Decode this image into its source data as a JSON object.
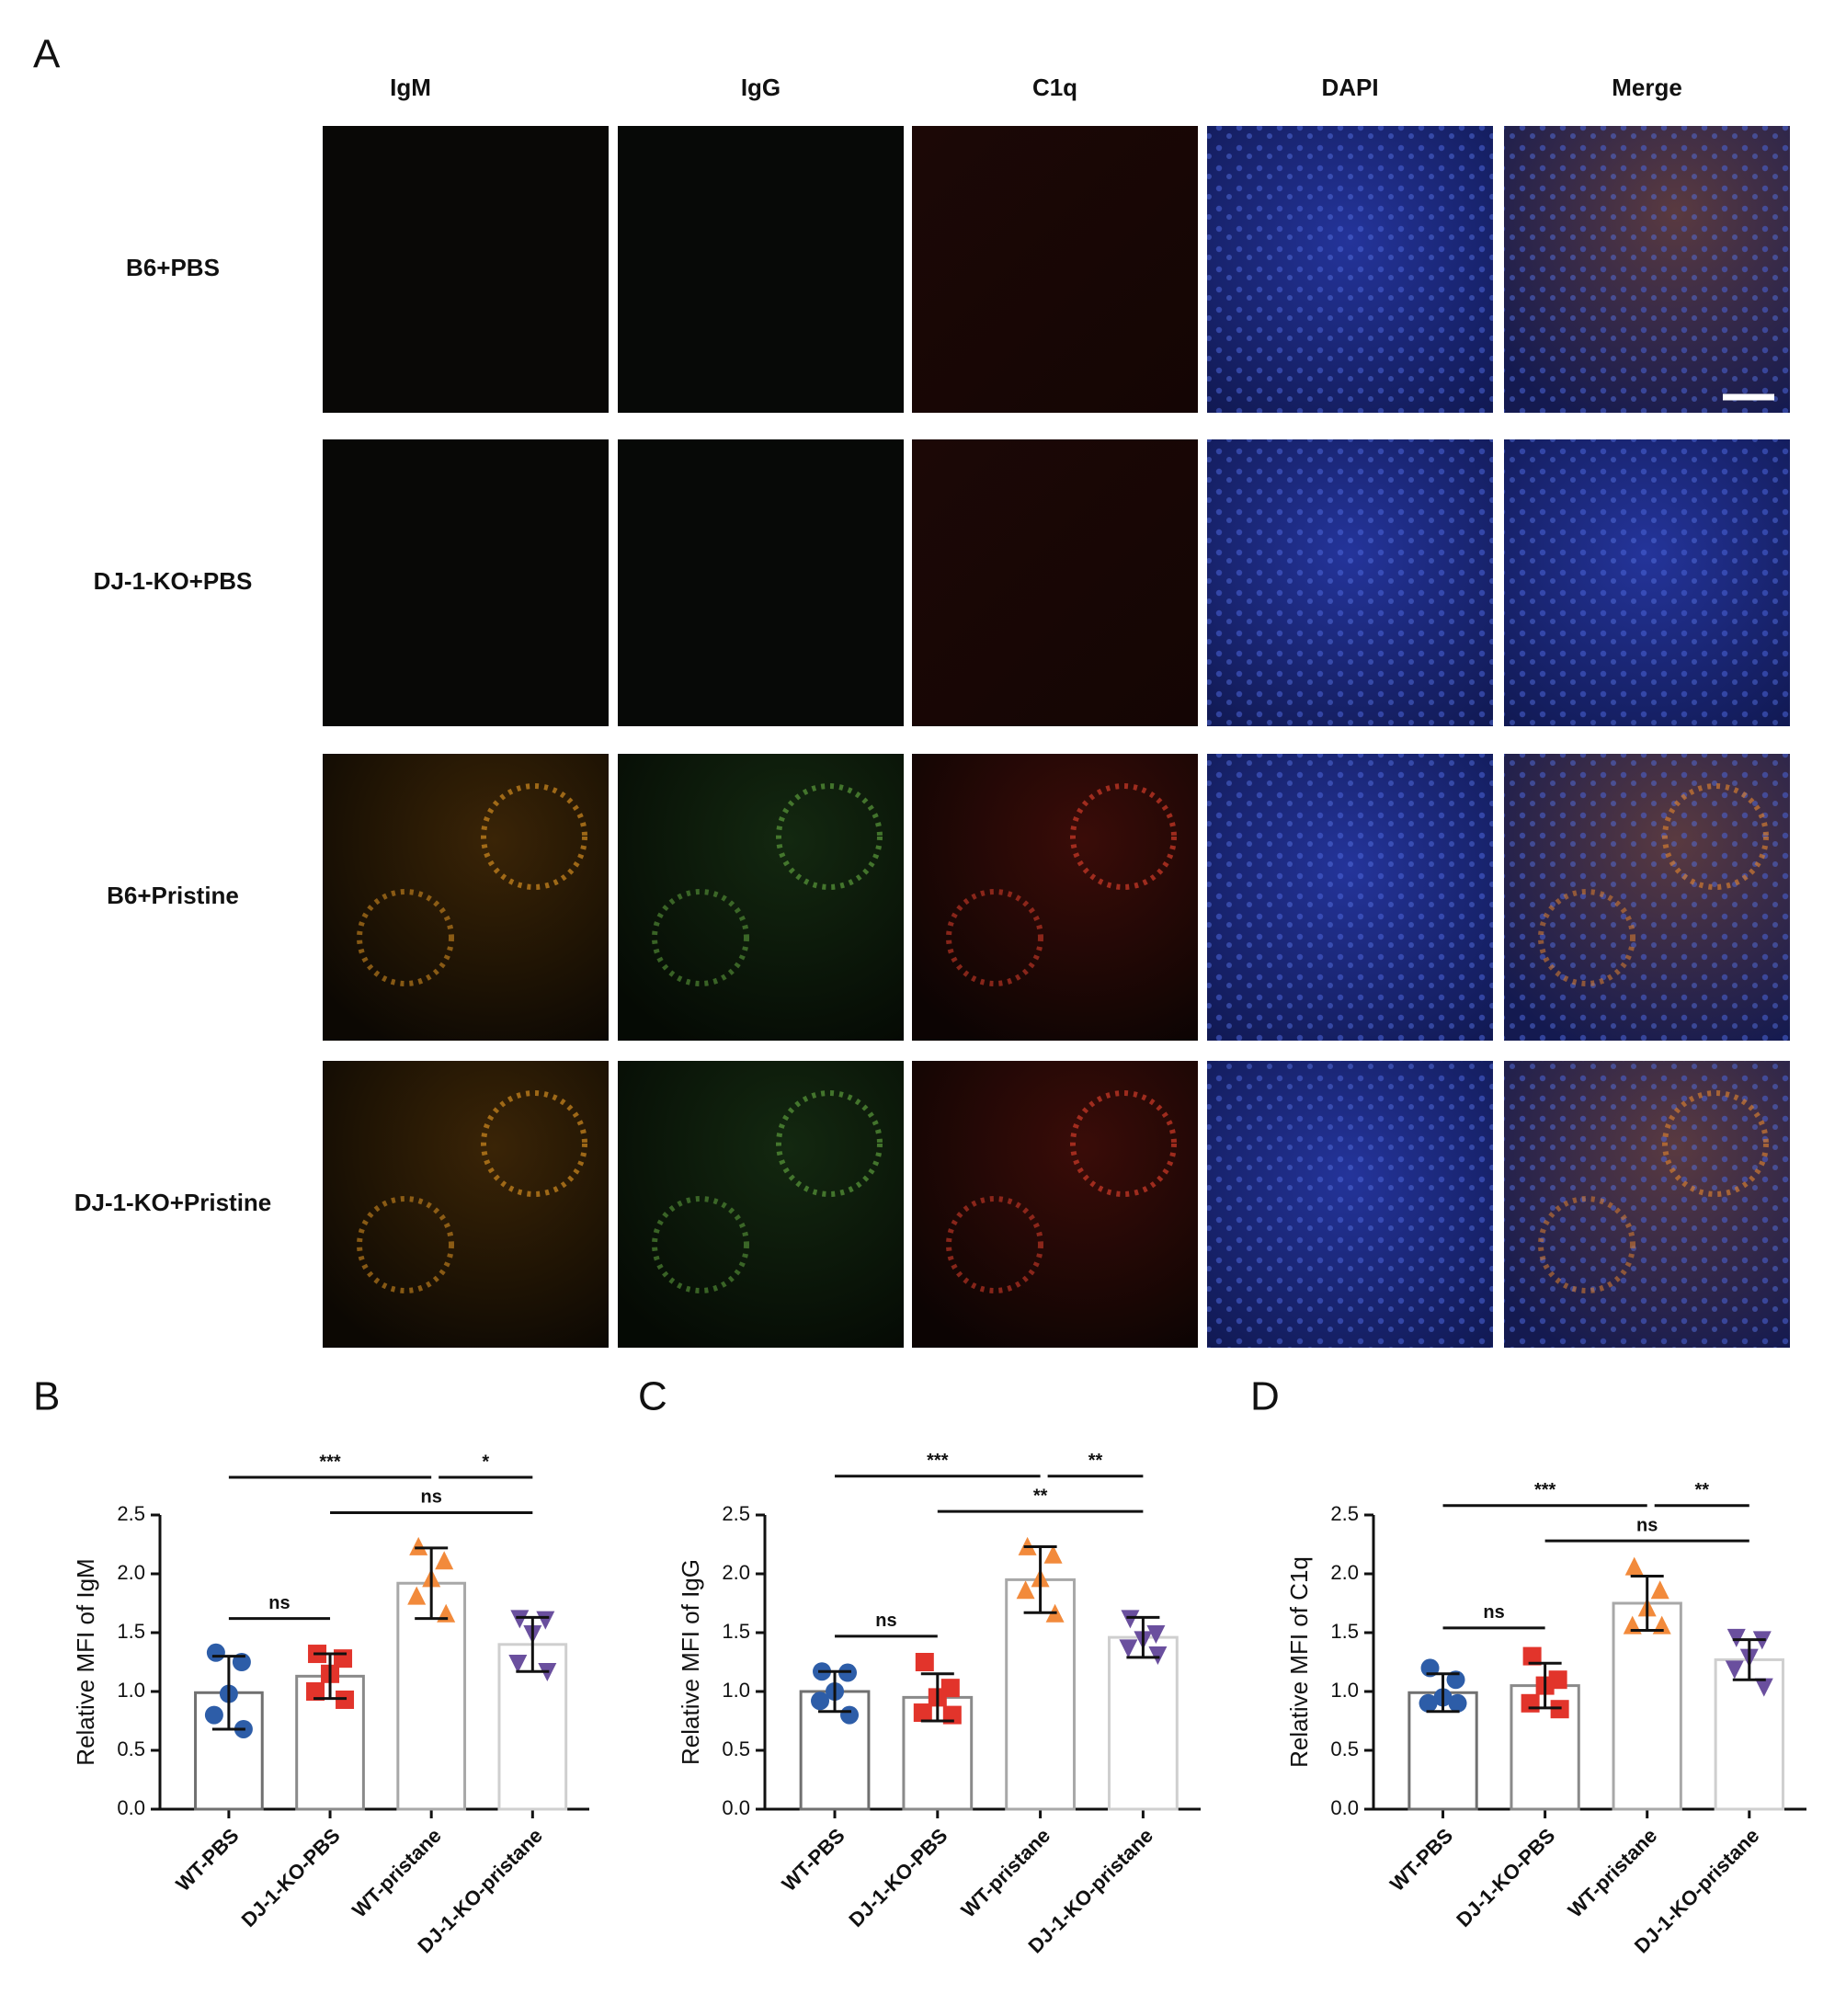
{
  "panel_a": {
    "label": "A",
    "columns": [
      "IgM",
      "IgG",
      "C1q",
      "DAPI",
      "Merge"
    ],
    "rows": [
      "B6+PBS",
      "DJ-1-KO+PBS",
      "B6+Pristine",
      "DJ-1-KO+Pristine"
    ]
  },
  "chart_data": [
    {
      "type": "bar",
      "panel": "B",
      "ylabel": "Relative MFI of IgM",
      "categories": [
        "WT-PBS",
        "DJ-1-KO-PBS",
        "WT-pristane",
        "DJ-1-KO-pristane"
      ],
      "values": [
        0.99,
        1.13,
        1.92,
        1.4
      ],
      "errors": [
        0.31,
        0.19,
        0.3,
        0.23
      ],
      "points": [
        [
          1.33,
          1.25,
          0.98,
          0.8,
          0.68
        ],
        [
          1.32,
          1.28,
          1.15,
          1.0,
          0.93
        ],
        [
          2.22,
          2.1,
          1.95,
          1.8,
          1.65
        ],
        [
          1.63,
          1.62,
          1.5,
          1.25,
          1.18
        ]
      ],
      "colors": [
        "#2d5da8",
        "#e2342b",
        "#f28a3b",
        "#6a4f9e"
      ],
      "markers": [
        "circle",
        "square",
        "triangle",
        "triangle-down"
      ],
      "edge_colors": [
        "#707070",
        "#8a8a8a",
        "#a8a8a8",
        "#cfcfcf"
      ],
      "ylim": [
        0,
        2.5
      ],
      "yticks": [
        {
          "value": 0,
          "label": "0.0"
        },
        0.5,
        {
          "value": 1,
          "label": "1.0"
        },
        1.5,
        {
          "value": 2,
          "label": "2.0"
        },
        2.5
      ],
      "significance": [
        {
          "from": 0,
          "to": 1,
          "label": "ns"
        },
        {
          "from": 1,
          "to": 3,
          "label": "ns"
        },
        {
          "from": 0,
          "to": 2,
          "label": "***"
        },
        {
          "from": 2,
          "to": 3,
          "label": "*"
        }
      ]
    },
    {
      "type": "bar",
      "panel": "C",
      "ylabel": "Relative MFI of IgG",
      "categories": [
        "WT-PBS",
        "DJ-1-KO-PBS",
        "WT-pristane",
        "DJ-1-KO-pristane"
      ],
      "values": [
        1.0,
        0.95,
        1.95,
        1.46
      ],
      "errors": [
        0.17,
        0.2,
        0.28,
        0.17
      ],
      "points": [
        [
          1.17,
          1.16,
          1.0,
          0.92,
          0.8
        ],
        [
          1.25,
          1.03,
          0.95,
          0.82,
          0.8
        ],
        [
          2.22,
          2.15,
          1.95,
          1.85,
          1.65
        ],
        [
          1.63,
          1.5,
          1.45,
          1.38,
          1.32
        ]
      ],
      "colors": [
        "#2d5da8",
        "#e2342b",
        "#f28a3b",
        "#6a4f9e"
      ],
      "markers": [
        "circle",
        "square",
        "triangle",
        "triangle-down"
      ],
      "edge_colors": [
        "#707070",
        "#8a8a8a",
        "#a8a8a8",
        "#cfcfcf"
      ],
      "ylim": [
        0,
        2.5
      ],
      "yticks": [
        {
          "value": 0,
          "label": "0.0"
        },
        0.5,
        {
          "value": 1,
          "label": "1.0"
        },
        1.5,
        {
          "value": 2,
          "label": "2.0"
        },
        2.5
      ],
      "significance": [
        {
          "from": 0,
          "to": 1,
          "label": "ns"
        },
        {
          "from": 1,
          "to": 3,
          "label": "**"
        },
        {
          "from": 0,
          "to": 2,
          "label": "***"
        },
        {
          "from": 2,
          "to": 3,
          "label": "**"
        }
      ]
    },
    {
      "type": "bar",
      "panel": "D",
      "ylabel": "Relative MFI of C1q",
      "categories": [
        "WT-PBS",
        "DJ-1-KO-PBS",
        "WT-pristane",
        "DJ-1-KO-pristane"
      ],
      "values": [
        0.99,
        1.05,
        1.75,
        1.27
      ],
      "errors": [
        0.16,
        0.19,
        0.23,
        0.17
      ],
      "points": [
        [
          1.2,
          1.1,
          0.95,
          0.9,
          0.9
        ],
        [
          1.3,
          1.1,
          1.05,
          0.9,
          0.85
        ],
        [
          2.05,
          1.85,
          1.7,
          1.55,
          1.55
        ],
        [
          1.47,
          1.45,
          1.3,
          1.2,
          1.05
        ]
      ],
      "colors": [
        "#2d5da8",
        "#e2342b",
        "#f28a3b",
        "#6a4f9e"
      ],
      "markers": [
        "circle",
        "square",
        "triangle",
        "triangle-down"
      ],
      "edge_colors": [
        "#707070",
        "#8a8a8a",
        "#a8a8a8",
        "#cfcfcf"
      ],
      "ylim": [
        0,
        2.5
      ],
      "yticks": [
        {
          "value": 0,
          "label": "0.0"
        },
        0.5,
        {
          "value": 1,
          "label": "1.0"
        },
        1.5,
        {
          "value": 2,
          "label": "2.0"
        },
        2.5
      ],
      "significance": [
        {
          "from": 0,
          "to": 1,
          "label": "ns"
        },
        {
          "from": 1,
          "to": 3,
          "label": "ns"
        },
        {
          "from": 0,
          "to": 2,
          "label": "***"
        },
        {
          "from": 2,
          "to": 3,
          "label": "**"
        }
      ]
    }
  ]
}
